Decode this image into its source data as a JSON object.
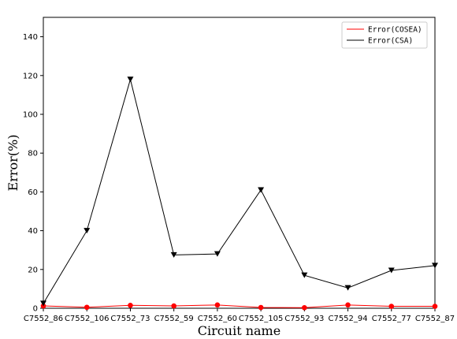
{
  "chart_data": {
    "type": "line",
    "xlabel": "Circuit name",
    "ylabel": "Error(%)",
    "ylim": [
      0,
      150
    ],
    "yticks": [
      0,
      20,
      40,
      60,
      80,
      100,
      120,
      140
    ],
    "categories": [
      "C7552_86",
      "C7552_106",
      "C7552_73",
      "C7552_59",
      "C7552_60",
      "C7552_105",
      "C7552_93",
      "C7552_94",
      "C7552_77",
      "C7552_87"
    ],
    "grid": false,
    "legend_position": "top-right",
    "series": [
      {
        "name": "Error(COSEA)",
        "color": "#ff0000",
        "marker": "circle",
        "values": [
          1.2,
          0.5,
          1.5,
          1.2,
          1.7,
          0.4,
          0.3,
          1.7,
          1.0,
          1.0
        ]
      },
      {
        "name": "Error(CSA)",
        "color": "#000000",
        "marker": "triangle-down",
        "values": [
          2.5,
          40,
          118,
          27.5,
          28,
          61,
          17,
          10.5,
          19.5,
          22
        ]
      }
    ]
  }
}
